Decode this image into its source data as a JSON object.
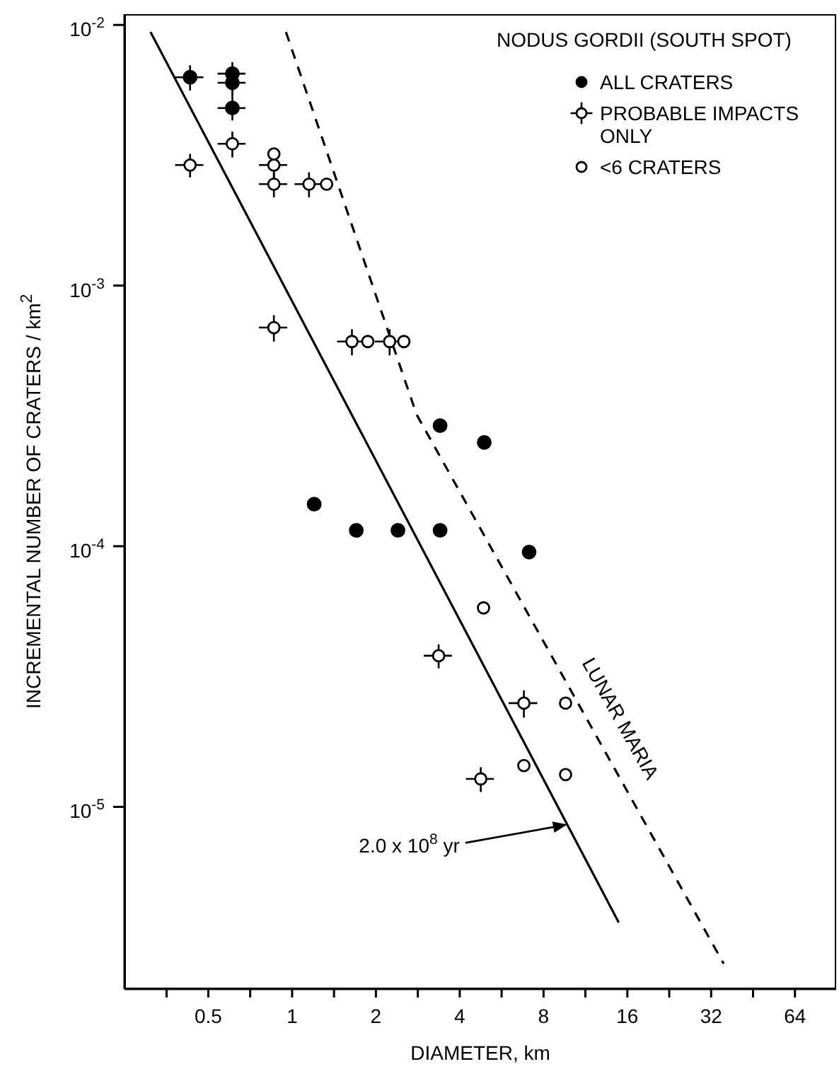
{
  "chart_data": {
    "type": "scatter",
    "title": "NODUS GORDII (SOUTH SPOT)",
    "xlabel": "DIAMETER, km",
    "ylabel": "INCREMENTAL NUMBER OF CRATERS / km$^{2}$",
    "log": "xy",
    "legend": "top right",
    "xlim": [
      0.25,
      90
    ],
    "ylim": [
      2e-06,
      0.011
    ],
    "xticks": [
      {
        "value": 0.354,
        "label": null
      },
      0.5,
      {
        "value": 0.707,
        "label": null
      },
      1,
      {
        "value": 1.414,
        "label": null
      },
      2,
      {
        "value": 2.828,
        "label": null
      },
      4,
      {
        "value": 5.657,
        "label": null
      },
      8,
      {
        "value": 11.31,
        "label": null
      },
      16,
      {
        "value": 22.63,
        "label": null
      },
      32,
      {
        "value": 45.25,
        "label": null
      },
      64
    ],
    "yticks": [
      {
        "value": 0.01,
        "label": "10$^{-2}$"
      },
      {
        "value": 0.001,
        "label": "10$^{-3}$"
      },
      {
        "value": 0.0001,
        "label": "10$^{-4}$"
      },
      {
        "value": 1e-05,
        "label": "10$^{-5}$"
      }
    ],
    "annotations": [
      "2.0 x 10$^{8}$ yr"
    ],
    "series": [
      {
        "name": "ALL CRATERS",
        "marker": "circle",
        "color": "#000000",
        "x": [
          1.2,
          1.7,
          2.4,
          3.4,
          3.4,
          4.9,
          7.1
        ],
        "values": [
          0.000145,
          0.000115,
          0.000115,
          0.000115,
          0.00029,
          0.00025,
          9.5e-05
        ]
      },
      {
        "marker": "circle",
        "color": "#000000",
        "x": [
          0.43,
          0.61,
          0.61,
          0.61
        ],
        "values": [
          0.0063,
          0.0065,
          0.006,
          0.0048
        ],
        "errors": [
          0.0007,
          0.0007,
          0.0007,
          0.0005
        ],
        "xerrors": [
          0.05,
          0.07,
          0.07,
          0.07
        ]
      },
      {
        "name": "PROBABLE IMPACTS ONLY",
        "marker": "circle",
        "color": "#ffffff",
        "x": [
          0.43,
          0.61,
          0.86,
          0.86,
          1.15,
          0.86,
          1.64,
          2.24,
          3.36,
          6.8,
          4.76
        ],
        "values": [
          0.0029,
          0.0035,
          0.0029,
          0.00245,
          0.00245,
          0.00069,
          0.00061,
          0.00061,
          3.8e-05,
          2.5e-05,
          1.28e-05
        ],
        "errors": [
          0.0003,
          0.0004,
          0.0003,
          0.00027,
          0.00027,
          8e-05,
          7e-05,
          7e-05,
          4e-06,
          3e-06,
          1.4e-06
        ],
        "xerrors": [
          0.05,
          0.07,
          0.1,
          0.1,
          0.13,
          0.1,
          0.19,
          0.26,
          0.39,
          0.8,
          0.55
        ]
      },
      {
        "name": "<6 CRATERS",
        "marker": "circle",
        "color": "#ffffff",
        "x": [
          0.86,
          1.33,
          1.87,
          2.52,
          4.87,
          9.6,
          6.8,
          9.6
        ],
        "values": [
          0.0032,
          0.00245,
          0.00061,
          0.00061,
          5.8e-05,
          2.5e-05,
          1.44e-05,
          1.33e-05
        ]
      },
      {
        "type": "line",
        "line_style": "solid",
        "color": "#000000",
        "x": [
          0.31,
          14.9
        ],
        "values": [
          0.0094,
          3.6e-06
        ]
      },
      {
        "name": "LUNAR MARIA",
        "type": "line",
        "line_style": "dashed",
        "color": "#000000",
        "x": [
          0.95,
          2.8,
          35.5
        ],
        "values": [
          0.0094,
          0.00032,
          2.5e-06
        ]
      }
    ]
  }
}
